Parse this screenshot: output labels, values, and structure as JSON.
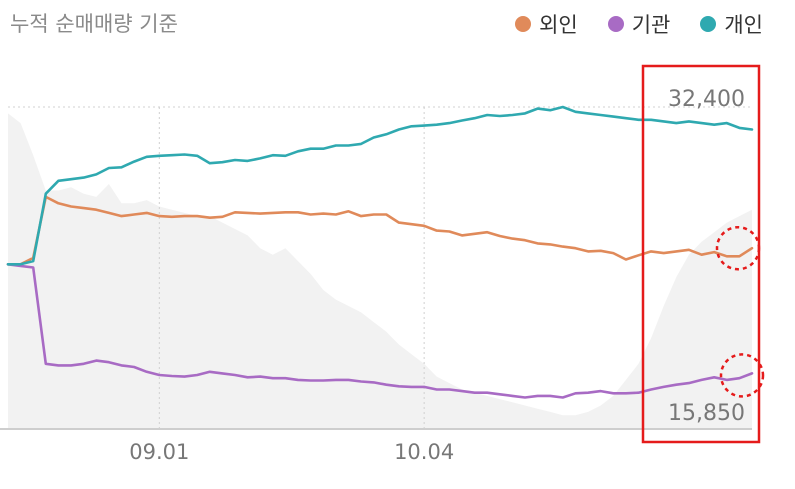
{
  "chart_data": {
    "type": "line",
    "title": "누적 순매매량 기준",
    "legend": [
      {
        "name": "외인",
        "color": "#e08a5a"
      },
      {
        "name": "기관",
        "color": "#a86bc4"
      },
      {
        "name": "개인",
        "color": "#2fa9b0"
      }
    ],
    "x_ticks": [
      "09.01",
      "10.04"
    ],
    "y_labels": {
      "max": "32,400",
      "min": "15,850"
    },
    "series": [
      {
        "name": "외인",
        "color": "#e08a5a",
        "values": [
          0.51,
          0.51,
          0.53,
          0.72,
          0.7,
          0.69,
          0.685,
          0.68,
          0.67,
          0.66,
          0.665,
          0.67,
          0.66,
          0.658,
          0.66,
          0.66,
          0.655,
          0.658,
          0.672,
          0.67,
          0.668,
          0.67,
          0.672,
          0.672,
          0.665,
          0.668,
          0.665,
          0.675,
          0.66,
          0.665,
          0.665,
          0.64,
          0.635,
          0.63,
          0.615,
          0.612,
          0.6,
          0.605,
          0.61,
          0.598,
          0.59,
          0.585,
          0.575,
          0.572,
          0.565,
          0.56,
          0.55,
          0.552,
          0.545,
          0.525,
          0.538,
          0.55,
          0.545,
          0.55,
          0.555,
          0.54,
          0.548,
          0.535,
          0.535,
          0.56
        ]
      },
      {
        "name": "기관",
        "color": "#a86bc4",
        "values": [
          0.51,
          0.505,
          0.5,
          0.2,
          0.195,
          0.195,
          0.2,
          0.21,
          0.205,
          0.195,
          0.19,
          0.175,
          0.165,
          0.162,
          0.16,
          0.165,
          0.175,
          0.17,
          0.165,
          0.158,
          0.16,
          0.155,
          0.155,
          0.15,
          0.148,
          0.148,
          0.15,
          0.15,
          0.145,
          0.142,
          0.135,
          0.13,
          0.128,
          0.128,
          0.12,
          0.12,
          0.115,
          0.11,
          0.11,
          0.105,
          0.1,
          0.095,
          0.1,
          0.1,
          0.095,
          0.108,
          0.11,
          0.115,
          0.108,
          0.108,
          0.11,
          0.12,
          0.128,
          0.135,
          0.14,
          0.15,
          0.158,
          0.15,
          0.155,
          0.17
        ]
      },
      {
        "name": "개인",
        "color": "#2fa9b0",
        "values": [
          0.51,
          0.51,
          0.52,
          0.73,
          0.77,
          0.775,
          0.78,
          0.79,
          0.81,
          0.812,
          0.83,
          0.845,
          0.848,
          0.85,
          0.852,
          0.848,
          0.825,
          0.828,
          0.835,
          0.832,
          0.84,
          0.85,
          0.848,
          0.862,
          0.87,
          0.87,
          0.88,
          0.88,
          0.885,
          0.905,
          0.915,
          0.93,
          0.94,
          0.942,
          0.945,
          0.95,
          0.958,
          0.965,
          0.975,
          0.972,
          0.975,
          0.98,
          0.995,
          0.99,
          1.0,
          0.985,
          0.98,
          0.975,
          0.97,
          0.965,
          0.96,
          0.96,
          0.955,
          0.95,
          0.955,
          0.95,
          0.945,
          0.95,
          0.935,
          0.93
        ]
      }
    ],
    "background_area": [
      0.98,
      0.95,
      0.85,
      0.74,
      0.74,
      0.75,
      0.73,
      0.72,
      0.76,
      0.7,
      0.7,
      0.71,
      0.69,
      0.68,
      0.67,
      0.66,
      0.66,
      0.64,
      0.62,
      0.6,
      0.56,
      0.54,
      0.56,
      0.52,
      0.48,
      0.43,
      0.4,
      0.38,
      0.36,
      0.33,
      0.3,
      0.26,
      0.23,
      0.2,
      0.16,
      0.14,
      0.12,
      0.11,
      0.1,
      0.09,
      0.08,
      0.07,
      0.06,
      0.05,
      0.04,
      0.04,
      0.05,
      0.07,
      0.1,
      0.15,
      0.2,
      0.28,
      0.38,
      0.47,
      0.54,
      0.58,
      0.61,
      0.64,
      0.66,
      0.68
    ],
    "annotations": [
      "highlight-box",
      "dotted-circle-외인-end",
      "dotted-circle-기관-end"
    ]
  }
}
